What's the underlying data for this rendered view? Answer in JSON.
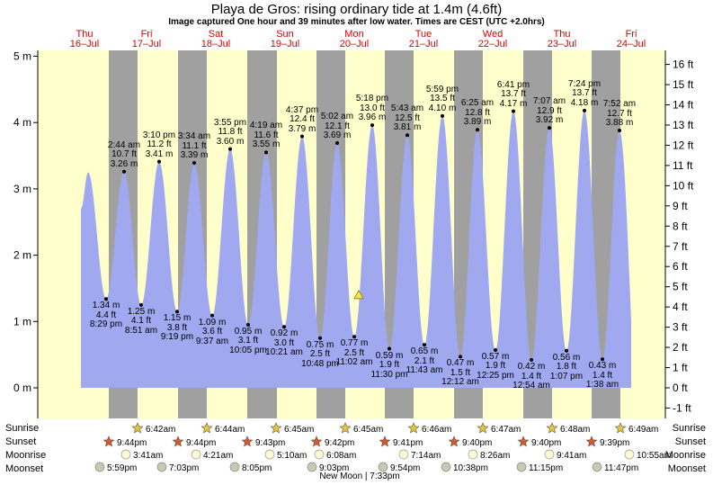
{
  "title": "Playa de Gros: rising  ordinary tide at 1.4m (4.6ft)",
  "subtitle": "Image captured One hour and 39 minutes after low water. Times are CEST (UTC +2.0hrs)",
  "chart_data": {
    "type": "area",
    "xlabel": "",
    "ylabel": "m",
    "ylim": [
      -0.45,
      5.25
    ],
    "yticks_m": [
      0,
      1,
      2,
      3,
      4,
      5
    ],
    "ytick_labels_m": [
      "0 m",
      "1 m",
      "2 m",
      "3 m",
      "4 m",
      "5 m"
    ],
    "yticks_ft": [
      -1,
      0,
      1,
      2,
      3,
      4,
      5,
      6,
      7,
      8,
      9,
      10,
      11,
      12,
      13,
      14,
      15,
      16
    ],
    "ytick_labels_ft": [
      "-1 ft",
      "0 ft",
      "1 ft",
      "2 ft",
      "3 ft",
      "4 ft",
      "5 ft",
      "6 ft",
      "7 ft",
      "8 ft",
      "9 ft",
      "10 ft",
      "11 ft",
      "12 ft",
      "13 ft",
      "14 ft",
      "15 ft",
      "16 ft"
    ],
    "day_headers": [
      {
        "day": "Thu",
        "date": "16–Jul"
      },
      {
        "day": "Fri",
        "date": "17–Jul"
      },
      {
        "day": "Sat",
        "date": "18–Jul"
      },
      {
        "day": "Sun",
        "date": "19–Jul"
      },
      {
        "day": "Mon",
        "date": "20–Jul"
      },
      {
        "day": "Tue",
        "date": "21–Jul"
      },
      {
        "day": "Wed",
        "date": "22–Jul"
      },
      {
        "day": "Thu",
        "date": "23–Jul"
      },
      {
        "day": "Fri",
        "date": "24–Jul"
      }
    ],
    "start_level": 2.7,
    "start_high": 3.25,
    "end_level": 1.4,
    "tides": [
      {
        "type": "low",
        "time": "8:29 pm",
        "m": 1.34,
        "m_label": "1.34 m",
        "ft": "4.4 ft"
      },
      {
        "type": "high",
        "time": "2:44 am",
        "m": 3.26,
        "m_label": "3.26 m",
        "ft": "10.7 ft"
      },
      {
        "type": "low",
        "time": "8:51 am",
        "m": 1.25,
        "m_label": "1.25 m",
        "ft": "4.1 ft"
      },
      {
        "type": "high",
        "time": "3:10 pm",
        "m": 3.41,
        "m_label": "3.41 m",
        "ft": "11.2 ft"
      },
      {
        "type": "low",
        "time": "9:19 pm",
        "m": 1.15,
        "m_label": "1.15 m",
        "ft": "3.8 ft"
      },
      {
        "type": "high",
        "time": "3:34 am",
        "m": 3.39,
        "m_label": "3.39 m",
        "ft": "11.1 ft"
      },
      {
        "type": "low",
        "time": "9:37 am",
        "m": 1.09,
        "m_label": "1.09 m",
        "ft": "3.6 ft"
      },
      {
        "type": "high",
        "time": "3:55 pm",
        "m": 3.6,
        "m_label": "3.60 m",
        "ft": "11.8 ft"
      },
      {
        "type": "low",
        "time": "10:05 pm",
        "m": 0.95,
        "m_label": "0.95 m",
        "ft": "3.1 ft"
      },
      {
        "type": "high",
        "time": "4:19 am",
        "m": 3.55,
        "m_label": "3.55 m",
        "ft": "11.6 ft"
      },
      {
        "type": "low",
        "time": "10:21 am",
        "m": 0.92,
        "m_label": "0.92 m",
        "ft": "3.0 ft"
      },
      {
        "type": "high",
        "time": "4:37 pm",
        "m": 3.79,
        "m_label": "3.79 m",
        "ft": "12.4 ft"
      },
      {
        "type": "low",
        "time": "10:48 pm",
        "m": 0.75,
        "m_label": "0.75 m",
        "ft": "2.5 ft"
      },
      {
        "type": "high",
        "time": "5:02 am",
        "m": 3.69,
        "m_label": "3.69 m",
        "ft": "12.1 ft"
      },
      {
        "type": "low",
        "time": "11:02 am",
        "m": 0.77,
        "m_label": "0.77 m",
        "ft": "2.5 ft"
      },
      {
        "type": "high",
        "time": "5:18 pm",
        "m": 3.96,
        "m_label": "3.96 m",
        "ft": "13.0 ft"
      },
      {
        "type": "low",
        "time": "11:30 pm",
        "m": 0.59,
        "m_label": "0.59 m",
        "ft": "1.9 ft"
      },
      {
        "type": "high",
        "time": "5:43 am",
        "m": 3.81,
        "m_label": "3.81 m",
        "ft": "12.5 ft"
      },
      {
        "type": "low",
        "time": "11:43 am",
        "m": 0.65,
        "m_label": "0.65 m",
        "ft": "2.1 ft"
      },
      {
        "type": "high",
        "time": "5:59 pm",
        "m": 4.1,
        "m_label": "4.10 m",
        "ft": "13.5 ft"
      },
      {
        "type": "low",
        "time": "12:12 am",
        "m": 0.47,
        "m_label": "0.47 m",
        "ft": "1.5 ft"
      },
      {
        "type": "high",
        "time": "6:25 am",
        "m": 3.89,
        "m_label": "3.89 m",
        "ft": "12.8 ft"
      },
      {
        "type": "low",
        "time": "12:25 pm",
        "m": 0.57,
        "m_label": "0.57 m",
        "ft": "1.9 ft"
      },
      {
        "type": "high",
        "time": "6:41 pm",
        "m": 4.17,
        "m_label": "4.17 m",
        "ft": "13.7 ft"
      },
      {
        "type": "low",
        "time": "12:54 am",
        "m": 0.42,
        "m_label": "0.42 m",
        "ft": "1.4 ft"
      },
      {
        "type": "high",
        "time": "7:07 am",
        "m": 3.92,
        "m_label": "3.92 m",
        "ft": "12.9 ft"
      },
      {
        "type": "low",
        "time": "1:07 pm",
        "m": 0.56,
        "m_label": "0.56 m",
        "ft": "1.8 ft"
      },
      {
        "type": "high",
        "time": "7:24 pm",
        "m": 4.18,
        "m_label": "4.18 m",
        "ft": "13.7 ft"
      },
      {
        "type": "low",
        "time": "1:38 am",
        "m": 0.43,
        "m_label": "0.43 m",
        "ft": "1.4 ft"
      },
      {
        "type": "high",
        "time": "7:52 am",
        "m": 3.88,
        "m_label": "3.88 m",
        "ft": "12.7 ft"
      }
    ],
    "current_marker_m": 1.4,
    "colors": {
      "day": "#ffffcc",
      "night": "#a0a0a0",
      "water": "#a0a8f0",
      "header": "#dd0000"
    }
  },
  "almanac": {
    "labels": {
      "sunrise": "Sunrise",
      "sunset": "Sunset",
      "moonrise": "Moonrise",
      "moonset": "Moonset"
    },
    "sunrise": [
      "6:42am",
      "6:44am",
      "6:45am",
      "6:45am",
      "6:46am",
      "6:47am",
      "6:48am",
      "6:49am"
    ],
    "sunset": [
      "9:44pm",
      "9:44pm",
      "9:43pm",
      "9:42pm",
      "9:41pm",
      "9:40pm",
      "9:40pm",
      "9:39pm"
    ],
    "moonrise": [
      "3:41am",
      "4:21am",
      "5:10am",
      "6:08am",
      "7:14am",
      "8:26am",
      "9:41am",
      "10:55am"
    ],
    "moonset": [
      "5:59pm",
      "7:03pm",
      "8:05pm",
      "9:03pm",
      "9:54pm",
      "10:38pm",
      "11:15pm",
      "11:47pm"
    ],
    "moon_phase": "New Moon | 7:33pm"
  }
}
